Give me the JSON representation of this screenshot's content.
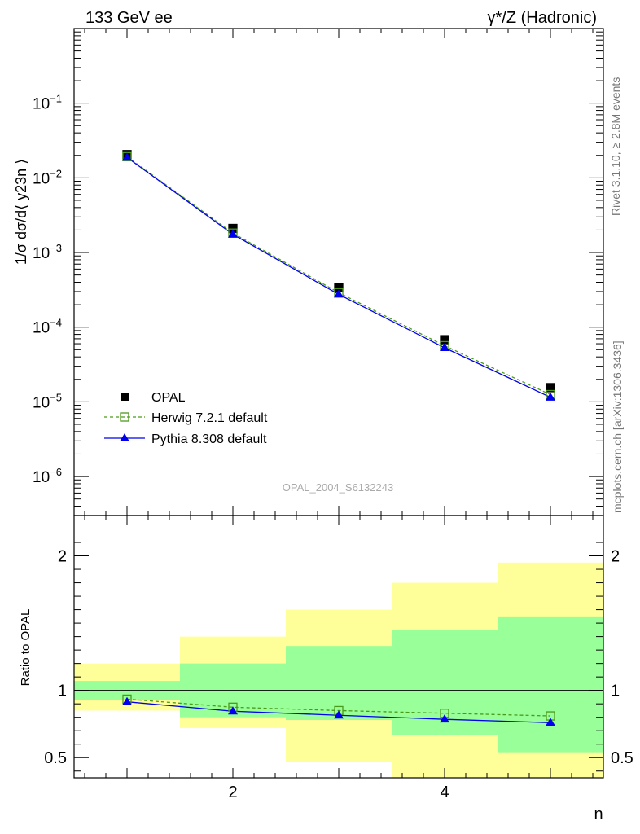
{
  "header": {
    "left": "133 GeV ee",
    "right": "γ*/Z (Hadronic)"
  },
  "side_text": {
    "rivet": "Rivet 3.1.10, ≥ 2.8M events",
    "mcplots": "mcplots.cern.ch [arXiv:1306.3436]"
  },
  "watermark": "OPAL_2004_S6132243",
  "colors": {
    "data": "#000000",
    "herwig": "#4a9a1a",
    "pythia": "#0000ee",
    "band_inner": "#99ff99",
    "band_outer": "#ffff99"
  },
  "chart_data": [
    {
      "type": "scatter",
      "panel": "main",
      "ylabel": "1/σ dσ/d⟨ y23n ⟩",
      "yscale": "log",
      "xlim": [
        0.5,
        5.5
      ],
      "ylim": [
        3e-07,
        1
      ],
      "ytick_labels": [
        "10−1",
        "10−2",
        "10−3",
        "10−4",
        "10−5",
        "10−6"
      ],
      "legend_position": "bottom-left",
      "x": [
        1,
        2,
        3,
        4,
        5
      ],
      "series": [
        {
          "name": "OPAL",
          "style": "square-marker",
          "values": [
            0.0205,
            0.0021,
            0.00034,
            6.8e-05,
            1.55e-05
          ]
        },
        {
          "name": "Herwig 7.2.1 default",
          "style": "dashed-open-square",
          "values": [
            0.0192,
            0.00182,
            0.00029,
            5.65e-05,
            1.25e-05
          ]
        },
        {
          "name": "Pythia 8.308 default",
          "style": "solid-triangle",
          "values": [
            0.0188,
            0.00175,
            0.000275,
            5.3e-05,
            1.15e-05
          ]
        }
      ]
    },
    {
      "type": "line",
      "panel": "ratio",
      "ylabel": "Ratio to OPAL",
      "xlabel": "n",
      "ylim": [
        0.35,
        2.3
      ],
      "xtick_labels": [
        "2",
        "4"
      ],
      "ytick_labels": [
        "0.5",
        "1",
        "2"
      ],
      "x": [
        1,
        2,
        3,
        4,
        5
      ],
      "bands": {
        "inner": [
          [
            0.93,
            1.07
          ],
          [
            0.8,
            1.2
          ],
          [
            0.78,
            1.33
          ],
          [
            0.67,
            1.45
          ],
          [
            0.54,
            1.55
          ]
        ],
        "outer": [
          [
            0.85,
            1.2
          ],
          [
            0.72,
            1.4
          ],
          [
            0.47,
            1.6
          ],
          [
            0.34,
            1.8
          ],
          [
            0.34,
            1.95
          ]
        ]
      },
      "series": [
        {
          "name": "Herwig 7.2.1 default",
          "values": [
            0.935,
            0.875,
            0.85,
            0.83,
            0.81
          ]
        },
        {
          "name": "Pythia 8.308 default",
          "values": [
            0.915,
            0.845,
            0.815,
            0.785,
            0.76
          ]
        }
      ]
    }
  ]
}
